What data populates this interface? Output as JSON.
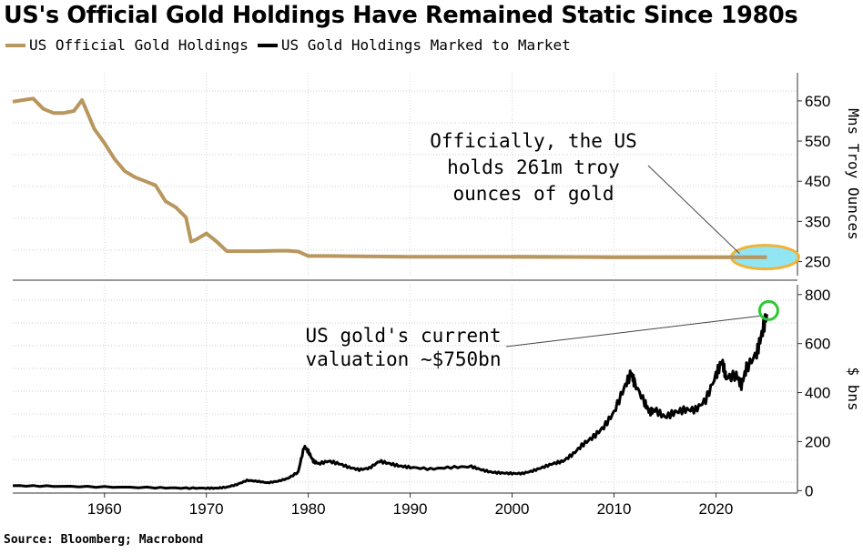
{
  "chart_data": {
    "type": "line",
    "title": "US's Official Gold Holdings Have Remained Static Since 1980s",
    "source": "Source: Bloomberg; Macrobond",
    "x_ticks": [
      "1960",
      "1970",
      "1980",
      "1990",
      "2000",
      "2010",
      "2020"
    ],
    "xlim": [
      1951,
      2028
    ],
    "colors": {
      "holdings": "#b8975e",
      "valuation": "#000000",
      "ellipse": "#f2b233",
      "ellipse_fill": "#7fe0f0",
      "circle": "#2ec832"
    },
    "series": [
      {
        "name": "US Official Gold Holdings",
        "ylabel": "Mns Troy Ounces",
        "ylim": [
          215,
          720
        ],
        "y_ticks": [
          "650",
          "550",
          "450",
          "350",
          "250"
        ],
        "annotation": [
          "Officially, the US",
          "holds 261m troy",
          "ounces of gold"
        ],
        "x": [
          1951,
          1952,
          1953,
          1954,
          1955,
          1956,
          1957,
          1957.8,
          1958,
          1959,
          1960,
          1961,
          1962,
          1963,
          1964,
          1965,
          1966,
          1967,
          1968,
          1968.5,
          1969,
          1970,
          1971,
          1972,
          1973,
          1975,
          1977,
          1978,
          1979,
          1980,
          1982,
          1985,
          1990,
          2000,
          2010,
          2020,
          2025
        ],
        "values": [
          648,
          652,
          656,
          630,
          620,
          620,
          625,
          652,
          640,
          580,
          545,
          505,
          475,
          460,
          450,
          440,
          400,
          385,
          360,
          300,
          305,
          320,
          300,
          276,
          276,
          276,
          277,
          277,
          275,
          264,
          264,
          263,
          262,
          262,
          261,
          261,
          261
        ]
      },
      {
        "name": "US Gold Holdings Marked to Market",
        "ylabel": "$ bns",
        "ylim": [
          -10,
          840
        ],
        "y_ticks": [
          "800",
          "600",
          "400",
          "200",
          "0"
        ],
        "annotation": [
          "US gold's current",
          "valuation ~$750bn"
        ],
        "x": [
          1951,
          1955,
          1960,
          1965,
          1968,
          1970,
          1971,
          1972,
          1973,
          1974,
          1975,
          1976,
          1977,
          1978,
          1979,
          1979.6,
          1980,
          1980.5,
          1981,
          1982,
          1983,
          1984,
          1985,
          1986,
          1987,
          1988,
          1989,
          1990,
          1992,
          1994,
          1996,
          1997,
          1998,
          1999,
          2000,
          2001,
          2002,
          2003,
          2004,
          2005,
          2006,
          2007,
          2008,
          2009,
          2010,
          2011,
          2011.7,
          2012,
          2013,
          2013.5,
          2014,
          2015,
          2016,
          2017,
          2018,
          2019,
          2020,
          2020.6,
          2021,
          2022,
          2022.5,
          2023,
          2024,
          2024.5,
          2025
        ],
        "values": [
          20,
          18,
          15,
          12,
          10,
          10,
          10,
          14,
          25,
          42,
          38,
          32,
          38,
          50,
          75,
          180,
          160,
          120,
          110,
          120,
          110,
          95,
          85,
          92,
          120,
          110,
          100,
          95,
          88,
          95,
          98,
          85,
          75,
          72,
          70,
          70,
          80,
          95,
          110,
          120,
          150,
          190,
          220,
          260,
          320,
          420,
          480,
          440,
          360,
          320,
          330,
          300,
          320,
          330,
          330,
          370,
          470,
          530,
          460,
          470,
          430,
          500,
          560,
          640,
          720
        ]
      }
    ]
  }
}
